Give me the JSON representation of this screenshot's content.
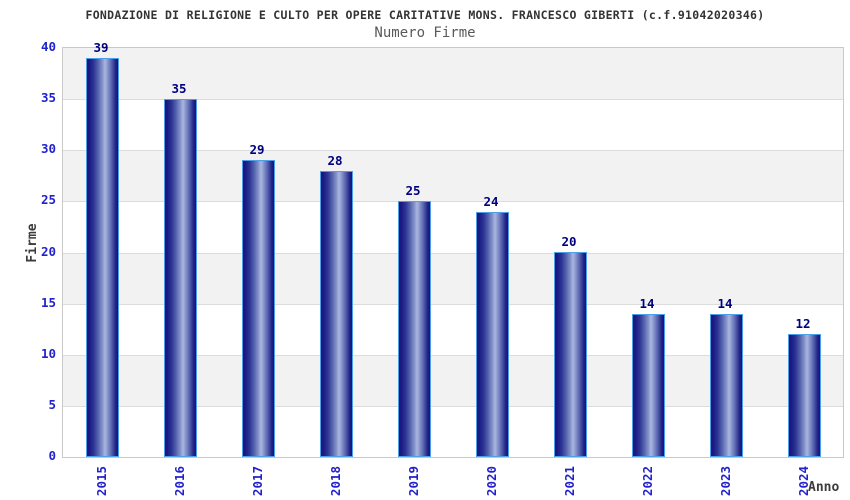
{
  "header": {
    "title": "FONDAZIONE DI RELIGIONE E CULTO PER OPERE CARITATIVE MONS. FRANCESCO GIBERTI (c.f.91042020346)",
    "subtitle": "Numero Firme"
  },
  "chart_data": {
    "type": "bar",
    "title": "FONDAZIONE DI RELIGIONE E CULTO PER OPERE CARITATIVE MONS. FRANCESCO GIBERTI (c.f.91042020346)",
    "subtitle": "Numero Firme",
    "categories": [
      "2015",
      "2016",
      "2017",
      "2018",
      "2019",
      "2020",
      "2021",
      "2022",
      "2023",
      "2024"
    ],
    "values": [
      39,
      35,
      29,
      28,
      25,
      24,
      20,
      14,
      14,
      12
    ],
    "xlabel": "Anno",
    "ylabel": "Firme",
    "ylim": [
      0,
      40
    ],
    "ytick_step": 5,
    "yticks": [
      0,
      5,
      10,
      15,
      20,
      25,
      30,
      35,
      40
    ],
    "grid": true,
    "legend": false,
    "value_labels_shown": true,
    "colors": {
      "bar_dark": "#131378",
      "bar_highlight": "#aab6e0",
      "bar_border": "#4da0e8",
      "value_label": "#000080",
      "tick_label": "#2222cc",
      "band_gray": "#f2f2f2",
      "band_white": "#ffffff",
      "gridline": "#dcdcdc",
      "plot_border": "#c9c9c9",
      "title": "#333333",
      "subtitle": "#595959",
      "axis_title": "#3c3c3c"
    }
  }
}
